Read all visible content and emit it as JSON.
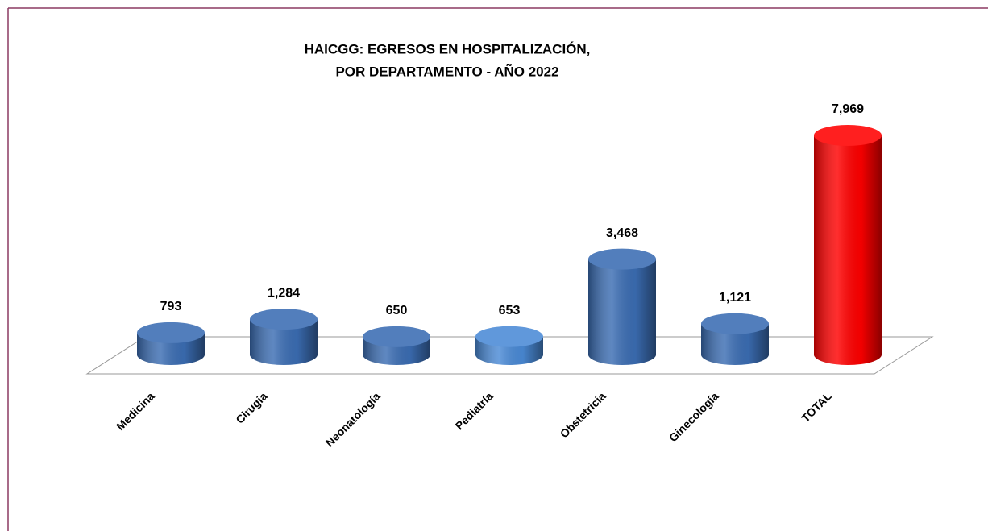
{
  "chart_data": {
    "type": "bar3d",
    "title": [
      "HAICGG: EGRESOS EN HOSPITALIZACIÓN,",
      "POR DEPARTAMENTO  - AÑO 2022"
    ],
    "categories": [
      "Medicina",
      "Cirugia",
      "Neonatología",
      "Pediatría",
      "Obstetricia",
      "Ginecología",
      "TOTAL"
    ],
    "values": [
      793,
      1284,
      650,
      653,
      3468,
      1121,
      7969
    ],
    "value_labels": [
      "793",
      "1,284",
      "650",
      "653",
      "3,468",
      "1,121",
      "7,969"
    ],
    "colors": [
      "#3b6db3",
      "#3b6db3",
      "#3b6db3",
      "#4a8ad6",
      "#3b6db3",
      "#3b6db3",
      "#ff0000"
    ]
  }
}
